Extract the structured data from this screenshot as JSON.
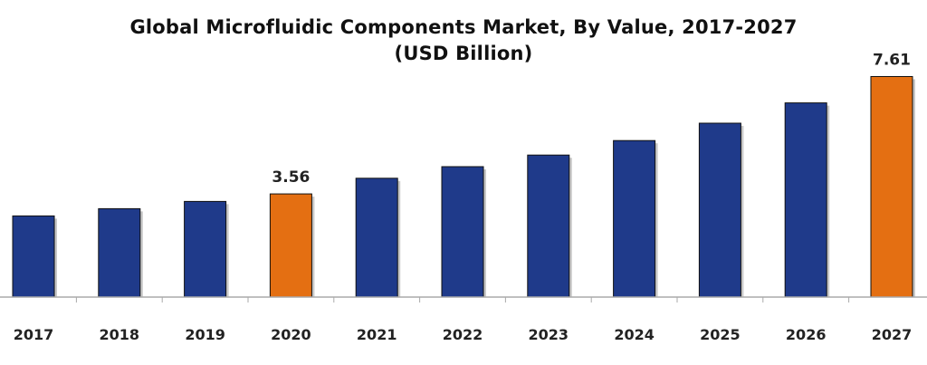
{
  "chart_data": {
    "type": "bar",
    "title": "Global Microfluidic Components Market, By Value, 2017-2027",
    "subtitle": "(USD Billion)",
    "xlabel": "",
    "ylabel": "",
    "categories": [
      "2017",
      "2018",
      "2019",
      "2020",
      "2021",
      "2022",
      "2023",
      "2024",
      "2025",
      "2026",
      "2027"
    ],
    "values": [
      2.8,
      3.05,
      3.3,
      3.56,
      4.1,
      4.5,
      4.9,
      5.4,
      6.0,
      6.7,
      7.61
    ],
    "data_labels": {
      "3": "3.56",
      "10": "7.61"
    },
    "highlight_indices": [
      3,
      10
    ],
    "ylim": [
      0,
      8.5
    ],
    "grid": false,
    "legend": "none",
    "colors": {
      "bar": "#1f3a8a",
      "highlight": "#e46f12",
      "baseline": "#aaaaaa"
    }
  }
}
